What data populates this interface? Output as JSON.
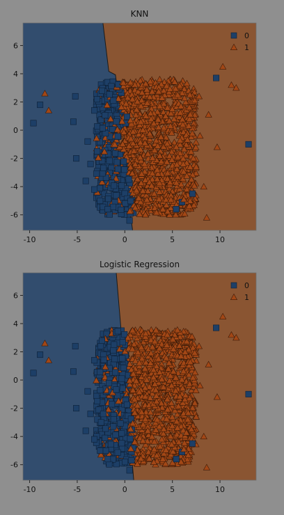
{
  "figure": {
    "background": "#8f8f8f"
  },
  "colors": {
    "region0": "#324d6e",
    "region1": "#8a5532",
    "marker0": "#1d3f67",
    "marker1": "#a24716",
    "text": "#111111"
  },
  "chart_data": [
    {
      "type": "scatter",
      "title": "KNN",
      "xlabel": "",
      "ylabel": "",
      "xlim": [
        -10.7,
        13.8
      ],
      "ylim": [
        -7.1,
        7.6
      ],
      "xticks": [
        -10,
        -5,
        0,
        5,
        10
      ],
      "yticks": [
        -6,
        -4,
        -2,
        0,
        2,
        4,
        6
      ],
      "grid": false,
      "legend_position": "top-right",
      "series": [
        {
          "name": "0",
          "marker": "square",
          "points": [
            [
              -9.6,
              0.5
            ],
            [
              -8.9,
              1.8
            ],
            [
              -5.2,
              2.4
            ],
            [
              -5.4,
              0.6
            ],
            [
              -5.1,
              -2.0
            ],
            [
              9.6,
              3.7
            ],
            [
              13.0,
              -1.0
            ],
            [
              -4.1,
              -3.6
            ],
            [
              -3.2,
              -4.2
            ],
            [
              -2.6,
              -5.0
            ],
            [
              -1.8,
              -5.6
            ],
            [
              -3.6,
              -2.4
            ],
            [
              -3.9,
              -0.8
            ],
            [
              -2.4,
              2.8
            ],
            [
              -3.2,
              1.4
            ],
            [
              0.5,
              -6.4
            ],
            [
              5.4,
              -5.6
            ],
            [
              7.1,
              -4.5
            ],
            [
              6.0,
              -5.1
            ],
            [
              -1.2,
              2.1
            ],
            [
              -2.9,
              -1.5
            ]
          ]
        },
        {
          "name": "1",
          "marker": "triangle",
          "points": [
            [
              -8.4,
              2.6
            ],
            [
              -8.0,
              1.4
            ],
            [
              10.3,
              4.5
            ],
            [
              11.2,
              3.2
            ],
            [
              11.7,
              3.0
            ],
            [
              7.8,
              2.4
            ],
            [
              8.8,
              1.1
            ],
            [
              9.7,
              -1.2
            ],
            [
              7.9,
              -0.4
            ],
            [
              8.3,
              -4.0
            ],
            [
              8.6,
              -6.2
            ],
            [
              7.5,
              -2.6
            ],
            [
              7.0,
              -3.5
            ],
            [
              6.2,
              -4.9
            ],
            [
              0.8,
              2.2
            ],
            [
              2.7,
              1.2
            ],
            [
              3.4,
              -2.8
            ],
            [
              1.9,
              -4.3
            ],
            [
              4.8,
              0.3
            ],
            [
              5.9,
              1.7
            ],
            [
              2.2,
              3.3
            ],
            [
              4.0,
              -5.6
            ]
          ]
        }
      ],
      "cluster": {
        "x_range": [
          -3.0,
          7.5
        ],
        "y_range": [
          -6.0,
          3.6
        ],
        "n": 1500
      }
    },
    {
      "type": "scatter",
      "title": "Logistic Regression",
      "xlabel": "",
      "ylabel": "",
      "xlim": [
        -10.7,
        13.8
      ],
      "ylim": [
        -7.1,
        7.6
      ],
      "xticks": [
        -10,
        -5,
        0,
        5,
        10
      ],
      "yticks": [
        -6,
        -4,
        -2,
        0,
        2,
        4,
        6
      ],
      "grid": false,
      "legend_position": "top-right",
      "series": [
        {
          "name": "0",
          "marker": "square",
          "points": [
            [
              -9.6,
              0.5
            ],
            [
              -8.9,
              1.8
            ],
            [
              -5.2,
              2.4
            ],
            [
              -5.4,
              0.6
            ],
            [
              -5.1,
              -2.0
            ],
            [
              9.6,
              3.7
            ],
            [
              13.0,
              -1.0
            ],
            [
              -4.1,
              -3.6
            ],
            [
              -3.2,
              -4.2
            ],
            [
              -2.6,
              -5.0
            ],
            [
              -1.8,
              -5.6
            ],
            [
              -3.6,
              -2.4
            ],
            [
              -3.9,
              -0.8
            ],
            [
              -2.4,
              2.8
            ],
            [
              -3.2,
              1.4
            ],
            [
              0.5,
              -6.4
            ],
            [
              5.4,
              -5.6
            ],
            [
              7.1,
              -4.5
            ],
            [
              6.0,
              -5.1
            ],
            [
              -1.2,
              2.1
            ],
            [
              -2.9,
              -1.5
            ]
          ]
        },
        {
          "name": "1",
          "marker": "triangle",
          "points": [
            [
              -8.4,
              2.6
            ],
            [
              -8.0,
              1.4
            ],
            [
              10.3,
              4.5
            ],
            [
              11.2,
              3.2
            ],
            [
              11.7,
              3.0
            ],
            [
              7.8,
              2.4
            ],
            [
              8.8,
              1.1
            ],
            [
              9.7,
              -1.2
            ],
            [
              7.9,
              -0.4
            ],
            [
              8.3,
              -4.0
            ],
            [
              8.6,
              -6.2
            ],
            [
              7.5,
              -2.6
            ],
            [
              7.0,
              -3.5
            ],
            [
              6.2,
              -4.9
            ],
            [
              0.8,
              2.2
            ],
            [
              2.7,
              1.2
            ],
            [
              3.4,
              -2.8
            ],
            [
              1.9,
              -4.3
            ],
            [
              4.8,
              0.3
            ],
            [
              5.9,
              1.7
            ],
            [
              2.2,
              3.3
            ],
            [
              4.0,
              -5.6
            ]
          ]
        }
      ],
      "cluster": {
        "x_range": [
          -3.0,
          7.5
        ],
        "y_range": [
          -6.0,
          3.6
        ],
        "n": 1500
      }
    }
  ]
}
